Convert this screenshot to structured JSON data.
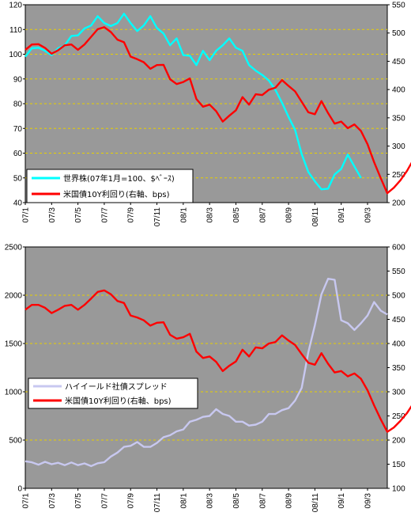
{
  "chart_data": [
    {
      "type": "line",
      "title": "",
      "xlabel": "",
      "ylabel": "",
      "grid": true,
      "legend_placement": "bottom-left",
      "x_ticks": [
        "07/1",
        "07/3",
        "07/5",
        "07/7",
        "07/9",
        "07/11",
        "08/1",
        "08/3",
        "08/5",
        "08/7",
        "08/9",
        "08/11",
        "09/1",
        "09/3"
      ],
      "ylim_left": [
        40,
        120
      ],
      "yticks_left": [
        "40",
        "50",
        "60",
        "70",
        "80",
        "90",
        "100",
        "110",
        "120"
      ],
      "ylim_right": [
        200,
        550
      ],
      "yticks_right": [
        "200",
        "250",
        "300",
        "350",
        "400",
        "450",
        "500",
        "550"
      ],
      "series": [
        {
          "name": "世界株(07年1月=100、$ﾍﾞｰｽ)",
          "axis": "left",
          "color": "#00FFFF",
          "points": [
            [
              0,
              99
            ],
            [
              0.5,
              102
            ],
            [
              1,
              103
            ],
            [
              1.5,
              101
            ],
            [
              2,
              100
            ],
            [
              2.5,
              102
            ],
            [
              3,
              104
            ],
            [
              3.5,
              107
            ],
            [
              4,
              108
            ],
            [
              4.5,
              110
            ],
            [
              5,
              112
            ],
            [
              5.5,
              115
            ],
            [
              6,
              113
            ],
            [
              6.5,
              111
            ],
            [
              7,
              113
            ],
            [
              7.5,
              116
            ],
            [
              8,
              113
            ],
            [
              8.5,
              109
            ],
            [
              9,
              112
            ],
            [
              9.5,
              115
            ],
            [
              10,
              111
            ],
            [
              10.5,
              108
            ],
            [
              11,
              104
            ],
            [
              11.5,
              106
            ],
            [
              12,
              100
            ],
            [
              12.5,
              99
            ],
            [
              13,
              96
            ],
            [
              13.5,
              101
            ],
            [
              14,
              98
            ],
            [
              14.5,
              101
            ],
            [
              15,
              104
            ],
            [
              15.5,
              106
            ],
            [
              16,
              103
            ],
            [
              16.5,
              101
            ],
            [
              17,
              96
            ],
            [
              17.5,
              93
            ],
            [
              18,
              92
            ],
            [
              18.5,
              89
            ],
            [
              19,
              86
            ],
            [
              19.5,
              80
            ],
            [
              20,
              75
            ],
            [
              20.5,
              69
            ],
            [
              21,
              60
            ],
            [
              21.5,
              52
            ],
            [
              22,
              49
            ],
            [
              22.5,
              45
            ],
            [
              23,
              46
            ],
            [
              23.5,
              51
            ],
            [
              24,
              54
            ],
            [
              24.5,
              59
            ],
            [
              25,
              55
            ],
            [
              25.5,
              50
            ]
          ]
        },
        {
          "name": "米国債10Y利回り(右軸、bps)",
          "axis": "right",
          "color": "#FF0000",
          "points": [
            [
              0,
              470
            ],
            [
              0.5,
              478
            ],
            [
              1,
              482
            ],
            [
              1.5,
              472
            ],
            [
              2,
              465
            ],
            [
              2.5,
              468
            ],
            [
              3,
              480
            ],
            [
              3.5,
              478
            ],
            [
              4,
              472
            ],
            [
              4.5,
              478
            ],
            [
              5,
              495
            ],
            [
              5.5,
              505
            ],
            [
              6,
              512
            ],
            [
              6.5,
              500
            ],
            [
              7,
              490
            ],
            [
              7.5,
              482
            ],
            [
              8,
              460
            ],
            [
              8.5,
              452
            ],
            [
              9,
              450
            ],
            [
              9.5,
              435
            ],
            [
              10,
              445
            ],
            [
              10.5,
              442
            ],
            [
              11,
              420
            ],
            [
              11.5,
              408
            ],
            [
              12,
              415
            ],
            [
              12.5,
              418
            ],
            [
              13,
              385
            ],
            [
              13.5,
              368
            ],
            [
              14,
              375
            ],
            [
              14.5,
              360
            ],
            [
              15,
              345
            ],
            [
              15.5,
              352
            ],
            [
              16,
              365
            ],
            [
              16.5,
              385
            ],
            [
              17,
              375
            ],
            [
              17.5,
              390
            ],
            [
              18,
              392
            ],
            [
              18.5,
              398
            ],
            [
              19,
              405
            ],
            [
              19.5,
              415
            ],
            [
              20,
              408
            ],
            [
              20.5,
              395
            ],
            [
              21,
              380
            ],
            [
              21.5,
              358
            ],
            [
              22,
              358
            ],
            [
              22.5,
              378
            ],
            [
              23,
              360
            ],
            [
              23.5,
              338
            ],
            [
              24,
              345
            ],
            [
              24.5,
              330
            ],
            [
              25,
              340
            ],
            [
              25.5,
              325
            ],
            [
              26,
              305
            ],
            [
              26.5,
              270
            ],
            [
              27,
              245
            ],
            [
              27.5,
              215
            ],
            [
              28,
              228
            ],
            [
              28.5,
              238
            ],
            [
              29,
              258
            ],
            [
              29.5,
              275
            ],
            [
              30,
              280
            ],
            [
              30.5,
              275
            ]
          ]
        }
      ]
    },
    {
      "type": "line",
      "title": "",
      "xlabel": "",
      "ylabel": "",
      "grid": true,
      "legend_placement": "middle-left",
      "x_ticks": [
        "07/1",
        "07/3",
        "07/5",
        "07/7",
        "07/9",
        "07/11",
        "08/1",
        "08/3",
        "08/5",
        "08/7",
        "08/9",
        "08/11",
        "09/1",
        "09/3"
      ],
      "ylim_left": [
        0,
        2500
      ],
      "yticks_left": [
        "0",
        "500",
        "1000",
        "1500",
        "2000",
        "2500"
      ],
      "ylim_right": [
        100,
        600
      ],
      "yticks_right": [
        "100",
        "150",
        "200",
        "250",
        "300",
        "350",
        "400",
        "450",
        "500",
        "550",
        "600"
      ],
      "series": [
        {
          "name": "ハイイールド社債スプレッド",
          "axis": "left",
          "color": "#C8C8F0",
          "points": [
            [
              0,
              280
            ],
            [
              0.5,
              260
            ],
            [
              1,
              255
            ],
            [
              1.5,
              265
            ],
            [
              2,
              260
            ],
            [
              2.5,
              255
            ],
            [
              3,
              250
            ],
            [
              3.5,
              258
            ],
            [
              4,
              250
            ],
            [
              4.5,
              248
            ],
            [
              5,
              240
            ],
            [
              5.5,
              250
            ],
            [
              6,
              280
            ],
            [
              6.5,
              320
            ],
            [
              7,
              380
            ],
            [
              7.5,
              420
            ],
            [
              8,
              450
            ],
            [
              8.5,
              470
            ],
            [
              9,
              440
            ],
            [
              9.5,
              420
            ],
            [
              10,
              480
            ],
            [
              10.5,
              520
            ],
            [
              11,
              560
            ],
            [
              11.5,
              580
            ],
            [
              12,
              620
            ],
            [
              12.5,
              680
            ],
            [
              13,
              720
            ],
            [
              13.5,
              730
            ],
            [
              14,
              760
            ],
            [
              14.5,
              810
            ],
            [
              15,
              780
            ],
            [
              15.5,
              740
            ],
            [
              16,
              700
            ],
            [
              16.5,
              680
            ],
            [
              17,
              660
            ],
            [
              17.5,
              650
            ],
            [
              18,
              700
            ],
            [
              18.5,
              760
            ],
            [
              19,
              780
            ],
            [
              19.5,
              800
            ],
            [
              20,
              840
            ],
            [
              20.5,
              900
            ],
            [
              21,
              1050
            ],
            [
              21.5,
              1400
            ],
            [
              22,
              1700
            ],
            [
              22.5,
              2000
            ],
            [
              23,
              2180
            ],
            [
              23.5,
              2150
            ],
            [
              24,
              1750
            ],
            [
              24.5,
              1700
            ],
            [
              25,
              1650
            ],
            [
              25.5,
              1700
            ],
            [
              26,
              1800
            ],
            [
              26.5,
              1920
            ],
            [
              27,
              1850
            ],
            [
              27.5,
              1800
            ]
          ]
        },
        {
          "name": "米国債10Y利回り(右軸、bps)",
          "axis": "right",
          "color": "#FF0000",
          "points": [
            [
              0,
              470
            ],
            [
              0.5,
              478
            ],
            [
              1,
              482
            ],
            [
              1.5,
              472
            ],
            [
              2,
              465
            ],
            [
              2.5,
              468
            ],
            [
              3,
              480
            ],
            [
              3.5,
              478
            ],
            [
              4,
              472
            ],
            [
              4.5,
              478
            ],
            [
              5,
              495
            ],
            [
              5.5,
              505
            ],
            [
              6,
              512
            ],
            [
              6.5,
              500
            ],
            [
              7,
              490
            ],
            [
              7.5,
              482
            ],
            [
              8,
              460
            ],
            [
              8.5,
              452
            ],
            [
              9,
              450
            ],
            [
              9.5,
              435
            ],
            [
              10,
              445
            ],
            [
              10.5,
              442
            ],
            [
              11,
              420
            ],
            [
              11.5,
              408
            ],
            [
              12,
              415
            ],
            [
              12.5,
              418
            ],
            [
              13,
              385
            ],
            [
              13.5,
              368
            ],
            [
              14,
              375
            ],
            [
              14.5,
              360
            ],
            [
              15,
              345
            ],
            [
              15.5,
              352
            ],
            [
              16,
              365
            ],
            [
              16.5,
              385
            ],
            [
              17,
              375
            ],
            [
              17.5,
              390
            ],
            [
              18,
              392
            ],
            [
              18.5,
              398
            ],
            [
              19,
              405
            ],
            [
              19.5,
              415
            ],
            [
              20,
              408
            ],
            [
              20.5,
              395
            ],
            [
              21,
              380
            ],
            [
              21.5,
              358
            ],
            [
              22,
              358
            ],
            [
              22.5,
              378
            ],
            [
              23,
              360
            ],
            [
              23.5,
              338
            ],
            [
              24,
              345
            ],
            [
              24.5,
              330
            ],
            [
              25,
              340
            ],
            [
              25.5,
              325
            ],
            [
              26,
              305
            ],
            [
              26.5,
              270
            ],
            [
              27,
              245
            ],
            [
              27.5,
              215
            ],
            [
              28,
              228
            ],
            [
              28.5,
              238
            ],
            [
              29,
              258
            ],
            [
              29.5,
              275
            ],
            [
              30,
              280
            ],
            [
              30.5,
              275
            ]
          ]
        }
      ]
    }
  ]
}
